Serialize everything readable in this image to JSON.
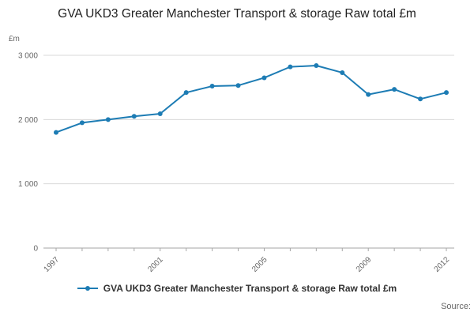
{
  "chart_data": {
    "type": "line",
    "title": "GVA UKD3 Greater Manchester Transport & storage Raw total £m",
    "ylabel": "£m",
    "x": [
      1997,
      1998,
      1999,
      2000,
      2001,
      2002,
      2003,
      2004,
      2005,
      2006,
      2007,
      2008,
      2009,
      2010,
      2011,
      2012
    ],
    "values": [
      1800,
      1950,
      2000,
      2050,
      2090,
      2420,
      2520,
      2530,
      2650,
      2820,
      2840,
      2730,
      2390,
      2470,
      2320,
      2420
    ],
    "ylim": [
      0,
      3000
    ],
    "yticks": [
      0,
      1000,
      2000,
      3000
    ],
    "ytick_labels": [
      "0",
      "1 000",
      "2 000",
      "3 000"
    ],
    "xtick_years": [
      1997,
      2001,
      2005,
      2009,
      2012
    ],
    "legend": "GVA UKD3 Greater Manchester Transport & storage Raw total £m",
    "source_label": "Source:",
    "line_color": "#1d7cb4",
    "grid_color": "#d8d8d8",
    "axis_color": "#a6a6a6",
    "tick_label_color": "#666666"
  }
}
